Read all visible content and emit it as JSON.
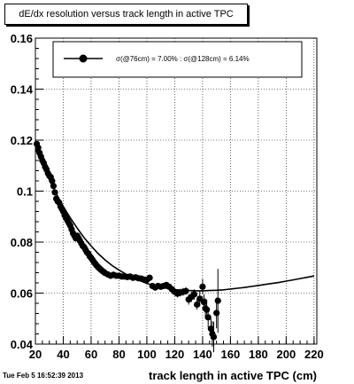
{
  "header": {
    "title": "dE/dx resolution versus track length in active TPC"
  },
  "footer": {
    "timestamp": "Tue Feb  5 16:52:39 2013"
  },
  "chart_data": {
    "type": "scatter",
    "title": "dE/dx resolution versus track length in active TPC",
    "xlabel": "track length in active TPC (cm)",
    "ylabel": "",
    "xlim": [
      20,
      222
    ],
    "ylim": [
      0.04,
      0.16
    ],
    "xticks": [
      20,
      40,
      60,
      80,
      100,
      120,
      140,
      160,
      180,
      200,
      220
    ],
    "yticks": [
      0.04,
      0.06,
      0.08,
      0.1,
      0.12,
      0.14,
      0.16
    ],
    "grid": true,
    "legend_position": "top",
    "legend": [
      "σ(@76cm) = 7.00% : σ(@128cm) = 6.14%"
    ],
    "colors": {
      "points": "#000000",
      "fit": "#000000",
      "grid": "#000000"
    },
    "points": [
      {
        "x": 21,
        "y": 0.1185,
        "err": 0.001
      },
      {
        "x": 22,
        "y": 0.117,
        "err": 0.001
      },
      {
        "x": 23,
        "y": 0.115,
        "err": 0.001
      },
      {
        "x": 24,
        "y": 0.1135,
        "err": 0.001
      },
      {
        "x": 25,
        "y": 0.112,
        "err": 0.001
      },
      {
        "x": 26,
        "y": 0.111,
        "err": 0.001
      },
      {
        "x": 27,
        "y": 0.1095,
        "err": 0.001
      },
      {
        "x": 28,
        "y": 0.1085,
        "err": 0.001
      },
      {
        "x": 29,
        "y": 0.107,
        "err": 0.001
      },
      {
        "x": 30,
        "y": 0.106,
        "err": 0.001
      },
      {
        "x": 31,
        "y": 0.1055,
        "err": 0.001
      },
      {
        "x": 32,
        "y": 0.104,
        "err": 0.001
      },
      {
        "x": 33,
        "y": 0.102,
        "err": 0.001
      },
      {
        "x": 34,
        "y": 0.0995,
        "err": 0.001
      },
      {
        "x": 35,
        "y": 0.097,
        "err": 0.001
      },
      {
        "x": 36,
        "y": 0.096,
        "err": 0.001
      },
      {
        "x": 37,
        "y": 0.0955,
        "err": 0.001
      },
      {
        "x": 38,
        "y": 0.094,
        "err": 0.001
      },
      {
        "x": 39,
        "y": 0.093,
        "err": 0.001
      },
      {
        "x": 40,
        "y": 0.092,
        "err": 0.001
      },
      {
        "x": 41,
        "y": 0.0905,
        "err": 0.001
      },
      {
        "x": 42,
        "y": 0.0895,
        "err": 0.001
      },
      {
        "x": 43,
        "y": 0.0885,
        "err": 0.001
      },
      {
        "x": 44,
        "y": 0.0875,
        "err": 0.001
      },
      {
        "x": 45,
        "y": 0.0865,
        "err": 0.001
      },
      {
        "x": 46,
        "y": 0.085,
        "err": 0.001
      },
      {
        "x": 47,
        "y": 0.0835,
        "err": 0.001
      },
      {
        "x": 48,
        "y": 0.0825,
        "err": 0.001
      },
      {
        "x": 49,
        "y": 0.0815,
        "err": 0.001
      },
      {
        "x": 50,
        "y": 0.0825,
        "err": 0.001
      },
      {
        "x": 51,
        "y": 0.0815,
        "err": 0.001
      },
      {
        "x": 52,
        "y": 0.0805,
        "err": 0.001
      },
      {
        "x": 53,
        "y": 0.0795,
        "err": 0.001
      },
      {
        "x": 54,
        "y": 0.0785,
        "err": 0.001
      },
      {
        "x": 55,
        "y": 0.078,
        "err": 0.001
      },
      {
        "x": 56,
        "y": 0.077,
        "err": 0.001
      },
      {
        "x": 57,
        "y": 0.076,
        "err": 0.001
      },
      {
        "x": 58,
        "y": 0.0755,
        "err": 0.001
      },
      {
        "x": 59,
        "y": 0.0745,
        "err": 0.001
      },
      {
        "x": 60,
        "y": 0.0738,
        "err": 0.001
      },
      {
        "x": 61,
        "y": 0.073,
        "err": 0.001
      },
      {
        "x": 62,
        "y": 0.0722,
        "err": 0.001
      },
      {
        "x": 63,
        "y": 0.0715,
        "err": 0.001
      },
      {
        "x": 64,
        "y": 0.0708,
        "err": 0.001
      },
      {
        "x": 65,
        "y": 0.0702,
        "err": 0.001
      },
      {
        "x": 66,
        "y": 0.0697,
        "err": 0.001
      },
      {
        "x": 67,
        "y": 0.0692,
        "err": 0.001
      },
      {
        "x": 68,
        "y": 0.0687,
        "err": 0.001
      },
      {
        "x": 69,
        "y": 0.0683,
        "err": 0.001
      },
      {
        "x": 70,
        "y": 0.0679,
        "err": 0.001
      },
      {
        "x": 72,
        "y": 0.0673,
        "err": 0.001
      },
      {
        "x": 74,
        "y": 0.0668,
        "err": 0.001
      },
      {
        "x": 76,
        "y": 0.0672,
        "err": 0.001
      },
      {
        "x": 78,
        "y": 0.0668,
        "err": 0.001
      },
      {
        "x": 80,
        "y": 0.0668,
        "err": 0.001
      },
      {
        "x": 82,
        "y": 0.0665,
        "err": 0.001
      },
      {
        "x": 84,
        "y": 0.0665,
        "err": 0.001
      },
      {
        "x": 86,
        "y": 0.0663,
        "err": 0.001
      },
      {
        "x": 88,
        "y": 0.0665,
        "err": 0.001
      },
      {
        "x": 90,
        "y": 0.066,
        "err": 0.001
      },
      {
        "x": 92,
        "y": 0.0662,
        "err": 0.001
      },
      {
        "x": 94,
        "y": 0.0658,
        "err": 0.001
      },
      {
        "x": 96,
        "y": 0.0657,
        "err": 0.001
      },
      {
        "x": 98,
        "y": 0.0653,
        "err": 0.001
      },
      {
        "x": 100,
        "y": 0.0652,
        "err": 0.001
      },
      {
        "x": 102,
        "y": 0.066,
        "err": 0.001
      },
      {
        "x": 104,
        "y": 0.0628,
        "err": 0.001
      },
      {
        "x": 106,
        "y": 0.0622,
        "err": 0.001
      },
      {
        "x": 108,
        "y": 0.0628,
        "err": 0.001
      },
      {
        "x": 110,
        "y": 0.0625,
        "err": 0.001
      },
      {
        "x": 112,
        "y": 0.0628,
        "err": 0.001
      },
      {
        "x": 114,
        "y": 0.0632,
        "err": 0.001
      },
      {
        "x": 116,
        "y": 0.0625,
        "err": 0.001
      },
      {
        "x": 118,
        "y": 0.0615,
        "err": 0.001
      },
      {
        "x": 120,
        "y": 0.0605,
        "err": 0.0015
      },
      {
        "x": 122,
        "y": 0.0598,
        "err": 0.0015
      },
      {
        "x": 124,
        "y": 0.0602,
        "err": 0.0015
      },
      {
        "x": 126,
        "y": 0.0605,
        "err": 0.0015
      },
      {
        "x": 128,
        "y": 0.0608,
        "err": 0.0015
      },
      {
        "x": 130,
        "y": 0.0575,
        "err": 0.002
      },
      {
        "x": 132,
        "y": 0.0585,
        "err": 0.002
      },
      {
        "x": 134,
        "y": 0.0595,
        "err": 0.002
      },
      {
        "x": 136,
        "y": 0.0555,
        "err": 0.002
      },
      {
        "x": 138,
        "y": 0.0578,
        "err": 0.003
      },
      {
        "x": 140,
        "y": 0.0625,
        "err": 0.003
      },
      {
        "x": 141,
        "y": 0.0565,
        "err": 0.003
      },
      {
        "x": 142,
        "y": 0.054,
        "err": 0.004
      },
      {
        "x": 143,
        "y": 0.0535,
        "err": 0.004
      },
      {
        "x": 144,
        "y": 0.0505,
        "err": 0.004
      },
      {
        "x": 146,
        "y": 0.046,
        "err": 0.004
      },
      {
        "x": 147,
        "y": 0.044,
        "err": 0.005
      },
      {
        "x": 148,
        "y": 0.0428,
        "err": 0.006
      },
      {
        "x": 150,
        "y": 0.0522,
        "err": 0.006
      },
      {
        "x": 151,
        "y": 0.057,
        "err": 0.0125
      }
    ],
    "fit": {
      "x": [
        20,
        25,
        30,
        35,
        40,
        45,
        50,
        55,
        60,
        65,
        70,
        75,
        80,
        85,
        90,
        95,
        100,
        105,
        110,
        115,
        120,
        125,
        130,
        135,
        140,
        145,
        150,
        155,
        160,
        165,
        170,
        175,
        180,
        185,
        190,
        195,
        200,
        205,
        210,
        215,
        220
      ],
      "y": [
        0.1165,
        0.1105,
        0.1045,
        0.099,
        0.094,
        0.0895,
        0.0855,
        0.0817,
        0.0785,
        0.0755,
        0.073,
        0.0708,
        0.069,
        0.0674,
        0.066,
        0.0649,
        0.0638,
        0.063,
        0.0624,
        0.0618,
        0.0614,
        0.0611,
        0.061,
        0.0609,
        0.0609,
        0.061,
        0.0611,
        0.0613,
        0.0616,
        0.0619,
        0.0622,
        0.0626,
        0.063,
        0.0634,
        0.0638,
        0.0642,
        0.0647,
        0.0652,
        0.0657,
        0.0662,
        0.0667
      ]
    }
  }
}
